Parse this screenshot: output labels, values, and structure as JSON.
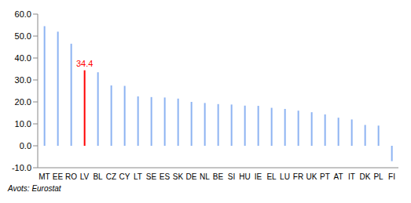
{
  "chart_data": {
    "type": "bar",
    "categories": [
      "MT",
      "EE",
      "RO",
      "LV",
      "BL",
      "CZ",
      "CY",
      "LT",
      "SE",
      "ES",
      "SK",
      "DE",
      "NL",
      "BE",
      "SI",
      "HU",
      "IE",
      "EL",
      "LU",
      "FR",
      "UK",
      "PT",
      "AT",
      "IT",
      "DK",
      "PL",
      "FI"
    ],
    "values": [
      54.5,
      52.0,
      46.5,
      34.4,
      33.5,
      27.5,
      27.3,
      22.5,
      22.2,
      22.0,
      21.5,
      20.0,
      19.5,
      19.0,
      18.8,
      18.3,
      18.2,
      17.3,
      16.8,
      16.0,
      15.3,
      14.3,
      12.8,
      12.0,
      9.5,
      9.2,
      -7.0
    ],
    "value_labels": [
      null,
      null,
      null,
      "34.4",
      null,
      null,
      null,
      null,
      null,
      null,
      null,
      null,
      null,
      null,
      null,
      null,
      null,
      null,
      null,
      null,
      null,
      null,
      null,
      null,
      null,
      null,
      null
    ],
    "data_labels": true,
    "colors": [
      "#8db3f2",
      "#8db3f2",
      "#8db3f2",
      "#ff0000",
      "#8db3f2",
      "#8db3f2",
      "#8db3f2",
      "#8db3f2",
      "#8db3f2",
      "#8db3f2",
      "#8db3f2",
      "#8db3f2",
      "#8db3f2",
      "#8db3f2",
      "#8db3f2",
      "#8db3f2",
      "#8db3f2",
      "#8db3f2",
      "#8db3f2",
      "#8db3f2",
      "#8db3f2",
      "#8db3f2",
      "#8db3f2",
      "#8db3f2",
      "#8db3f2",
      "#8db3f2",
      "#8db3f2"
    ],
    "ylim": [
      -10,
      60
    ],
    "yticks": [
      {
        "value": -10,
        "label": "-10.0"
      },
      {
        "value": 0,
        "label": "0.0"
      },
      {
        "value": 10,
        "label": "10.0"
      },
      {
        "value": 20,
        "label": "20.0"
      },
      {
        "value": 30,
        "label": "30.0"
      },
      {
        "value": 40,
        "label": "40.0"
      },
      {
        "value": 50,
        "label": "50.0"
      },
      {
        "value": 60,
        "label": "60.0"
      }
    ],
    "grid": false,
    "source": "Avots: Eurostat"
  }
}
